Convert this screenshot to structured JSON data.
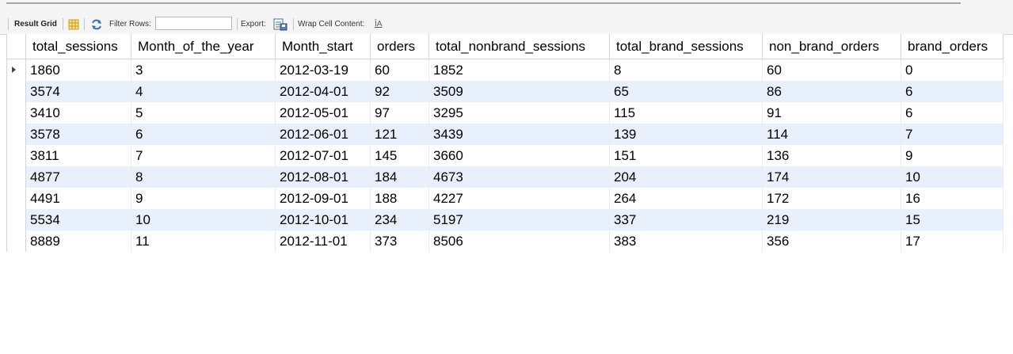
{
  "toolbar": {
    "result_grid_label": "Result Grid",
    "filter_rows_label": "Filter Rows:",
    "filter_rows_value": "",
    "export_label": "Export:",
    "wrap_cell_label": "Wrap Cell Content:",
    "wrap_icon_glyph": "ĪA"
  },
  "grid": {
    "columns": [
      "total_sessions",
      "Month_of_the_year",
      "Month_start",
      "orders",
      "total_nonbrand_sessions",
      "total_brand_sessions",
      "non_brand_orders",
      "brand_orders"
    ],
    "rows": [
      [
        "1860",
        "3",
        "2012-03-19",
        "60",
        "1852",
        "8",
        "60",
        "0"
      ],
      [
        "3574",
        "4",
        "2012-04-01",
        "92",
        "3509",
        "65",
        "86",
        "6"
      ],
      [
        "3410",
        "5",
        "2012-05-01",
        "97",
        "3295",
        "115",
        "91",
        "6"
      ],
      [
        "3578",
        "6",
        "2012-06-01",
        "121",
        "3439",
        "139",
        "114",
        "7"
      ],
      [
        "3811",
        "7",
        "2012-07-01",
        "145",
        "3660",
        "151",
        "136",
        "9"
      ],
      [
        "4877",
        "8",
        "2012-08-01",
        "184",
        "4673",
        "204",
        "174",
        "10"
      ],
      [
        "4491",
        "9",
        "2012-09-01",
        "188",
        "4227",
        "264",
        "172",
        "16"
      ],
      [
        "5534",
        "10",
        "2012-10-01",
        "234",
        "5197",
        "337",
        "219",
        "15"
      ],
      [
        "8889",
        "11",
        "2012-11-01",
        "373",
        "8506",
        "383",
        "356",
        "17"
      ]
    ]
  }
}
